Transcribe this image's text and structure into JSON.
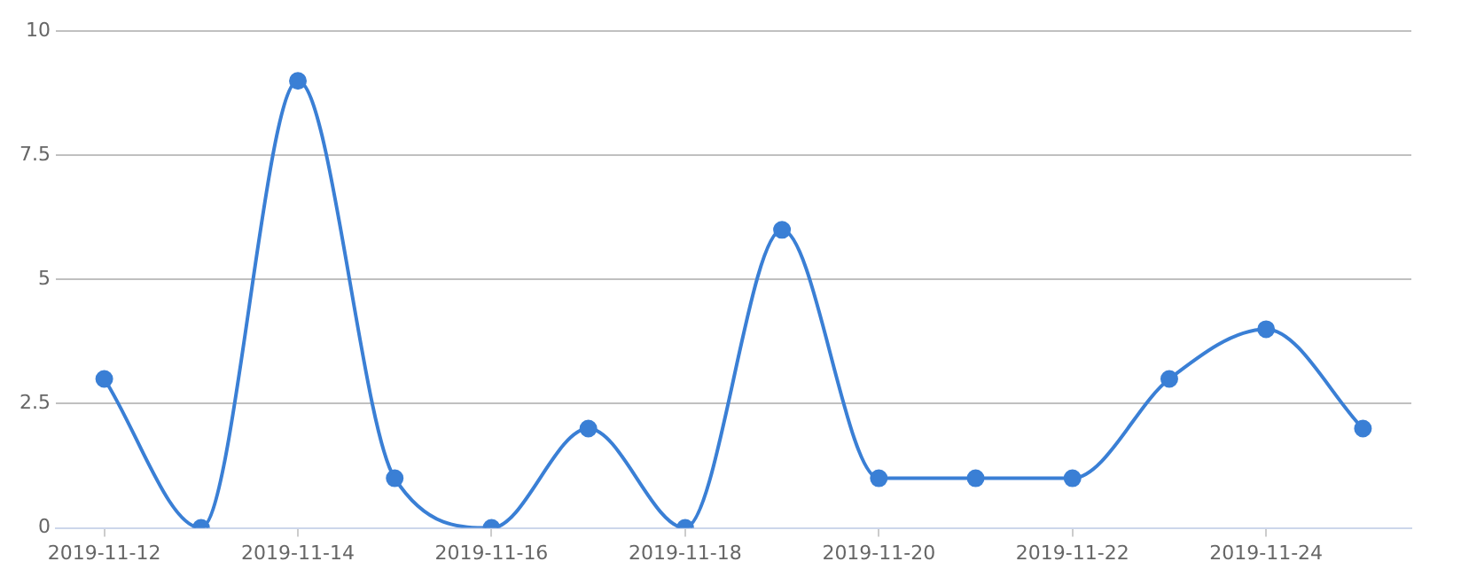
{
  "chart_data": {
    "type": "line",
    "x": [
      "2019-11-12",
      "2019-11-13",
      "2019-11-14",
      "2019-11-15",
      "2019-11-16",
      "2019-11-17",
      "2019-11-18",
      "2019-11-19",
      "2019-11-20",
      "2019-11-21",
      "2019-11-22",
      "2019-11-23",
      "2019-11-24",
      "2019-11-25"
    ],
    "series": [
      {
        "color": "#3a7fd5",
        "values": [
          3,
          0,
          9,
          1,
          0,
          2,
          0,
          6,
          1,
          1,
          1,
          3,
          4,
          2
        ]
      }
    ],
    "xlim": [
      "2019-11-11T12:00",
      "2019-11-25T12:00"
    ],
    "xticks": [
      "2019-11-12",
      "2019-11-14",
      "2019-11-16",
      "2019-11-18",
      "2019-11-20",
      "2019-11-22",
      "2019-11-24"
    ],
    "ylim": [
      0,
      10
    ],
    "yticks": [
      0,
      2.5,
      5,
      7.5,
      10
    ],
    "grid": "y",
    "marker": "circle",
    "legend": false
  }
}
